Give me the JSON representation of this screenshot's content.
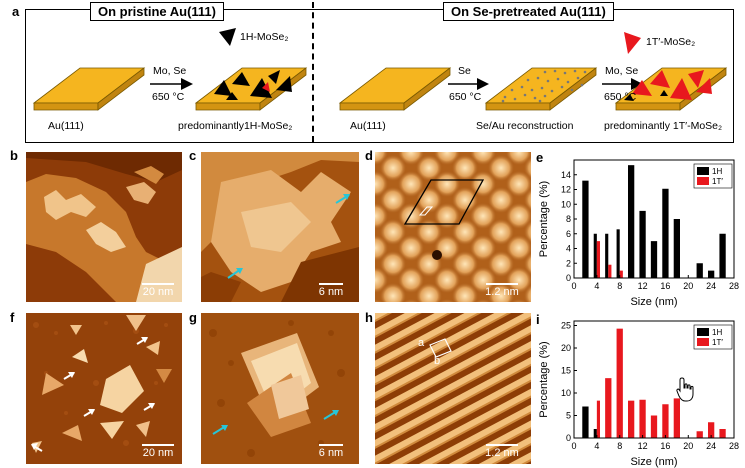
{
  "panel_labels": {
    "a": "a",
    "b": "b",
    "c": "c",
    "d": "d",
    "e": "e",
    "f": "f",
    "g": "g",
    "h": "h",
    "i": "i"
  },
  "schematic": {
    "left_title": "On pristine Au(111)",
    "right_title": "On Se-pretreated Au(111)",
    "legend_1h": "1H-MoSe₂",
    "legend_1t": "1T′-MoSe₂",
    "arrow1_top": "Mo, Se",
    "arrow1_bottom": "650 °C",
    "arrow2_top": "Se",
    "arrow2_bottom": "650 °C",
    "arrow3_top": "Mo, Se",
    "arrow3_bottom": "650 °C",
    "sub_au1": "Au(111)",
    "sub_1h": "predominantly1H-MoSe₂",
    "sub_au2": "Au(111)",
    "sub_seau": "Se/Au reconstruction",
    "sub_1t": "predominantly 1T′-MoSe₂",
    "colors": {
      "gold": "#f5b51f",
      "gold_dark": "#d39412",
      "black": "#000000",
      "red": "#e8181e"
    }
  },
  "scale_bars": {
    "b": "20 nm",
    "c": "6 nm",
    "d": "1.2 nm",
    "f": "20 nm",
    "g": "6 nm",
    "h": "1.2 nm"
  },
  "lattice_labels": {
    "a": "a",
    "b": "b"
  },
  "chart_data": [
    {
      "type": "bar",
      "panel": "e",
      "ylabel": "Percentage (%)",
      "xlabel": "Size (nm)",
      "xlim": [
        0,
        28
      ],
      "ylim": [
        0,
        16
      ],
      "xticks": [
        0,
        4,
        8,
        12,
        16,
        20,
        24,
        28
      ],
      "yticks": [
        0,
        2,
        4,
        6,
        8,
        10,
        12,
        14
      ],
      "legend": [
        "1H",
        "1T′"
      ],
      "legend_position": "top-right",
      "series": [
        {
          "name": "1H",
          "color": "#000000",
          "x": [
            2,
            4,
            6,
            8,
            10,
            12,
            14,
            16,
            18,
            22,
            24,
            26
          ],
          "values": [
            13.2,
            6.0,
            6.0,
            6.6,
            15.3,
            9.1,
            5.0,
            12.1,
            8.0,
            2.0,
            1.0,
            6.0
          ]
        },
        {
          "name": "1T′",
          "color": "#e8181e",
          "x": [
            4,
            6,
            8
          ],
          "values": [
            5.0,
            1.8,
            1.0
          ]
        }
      ]
    },
    {
      "type": "bar",
      "panel": "i",
      "ylabel": "Percentage (%)",
      "xlabel": "Size (nm)",
      "xlim": [
        0,
        28
      ],
      "ylim": [
        0,
        26
      ],
      "xticks": [
        0,
        4,
        8,
        12,
        16,
        20,
        24,
        28
      ],
      "yticks": [
        0,
        5,
        10,
        15,
        20,
        25
      ],
      "legend": [
        "1H",
        "1T′"
      ],
      "legend_position": "top-right",
      "series": [
        {
          "name": "1H",
          "color": "#000000",
          "x": [
            2,
            4
          ],
          "values": [
            7.0,
            2.0
          ]
        },
        {
          "name": "1T′",
          "color": "#e8181e",
          "x": [
            4,
            6,
            8,
            10,
            12,
            14,
            16,
            18,
            22,
            24,
            26
          ],
          "values": [
            8.3,
            13.3,
            24.3,
            8.3,
            8.5,
            5.0,
            7.5,
            8.8,
            1.5,
            3.5,
            2.0
          ]
        }
      ]
    }
  ]
}
